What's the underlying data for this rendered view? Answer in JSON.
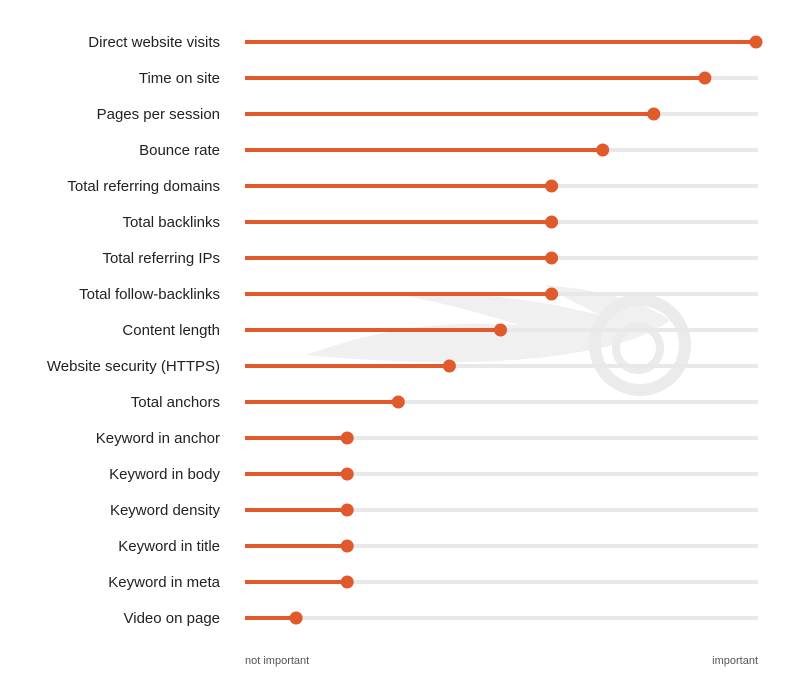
{
  "chart_data": {
    "type": "lollipop",
    "title": "",
    "xlabel": "",
    "ylabel": "",
    "xlim": [
      0,
      100
    ],
    "x_axis_left_label": "not important",
    "x_axis_right_label": "important",
    "categories": [
      "Direct website visits",
      "Time on site",
      "Pages per session",
      "Bounce rate",
      "Total referring domains",
      "Total backlinks",
      "Total referring IPs",
      "Total follow-backlinks",
      "Content length",
      "Website security (HTTPS)",
      "Total anchors",
      "Keyword in anchor",
      "Keyword in body",
      "Keyword density",
      "Keyword in title",
      "Keyword in meta",
      "Video on page"
    ],
    "values": [
      100,
      90,
      80,
      70,
      60,
      60,
      60,
      60,
      50,
      40,
      30,
      20,
      20,
      20,
      20,
      20,
      10
    ],
    "colors": {
      "accent": "#e05a2b",
      "track": "#e8e8e8",
      "label": "#222222",
      "watermark": "#ececec"
    }
  }
}
